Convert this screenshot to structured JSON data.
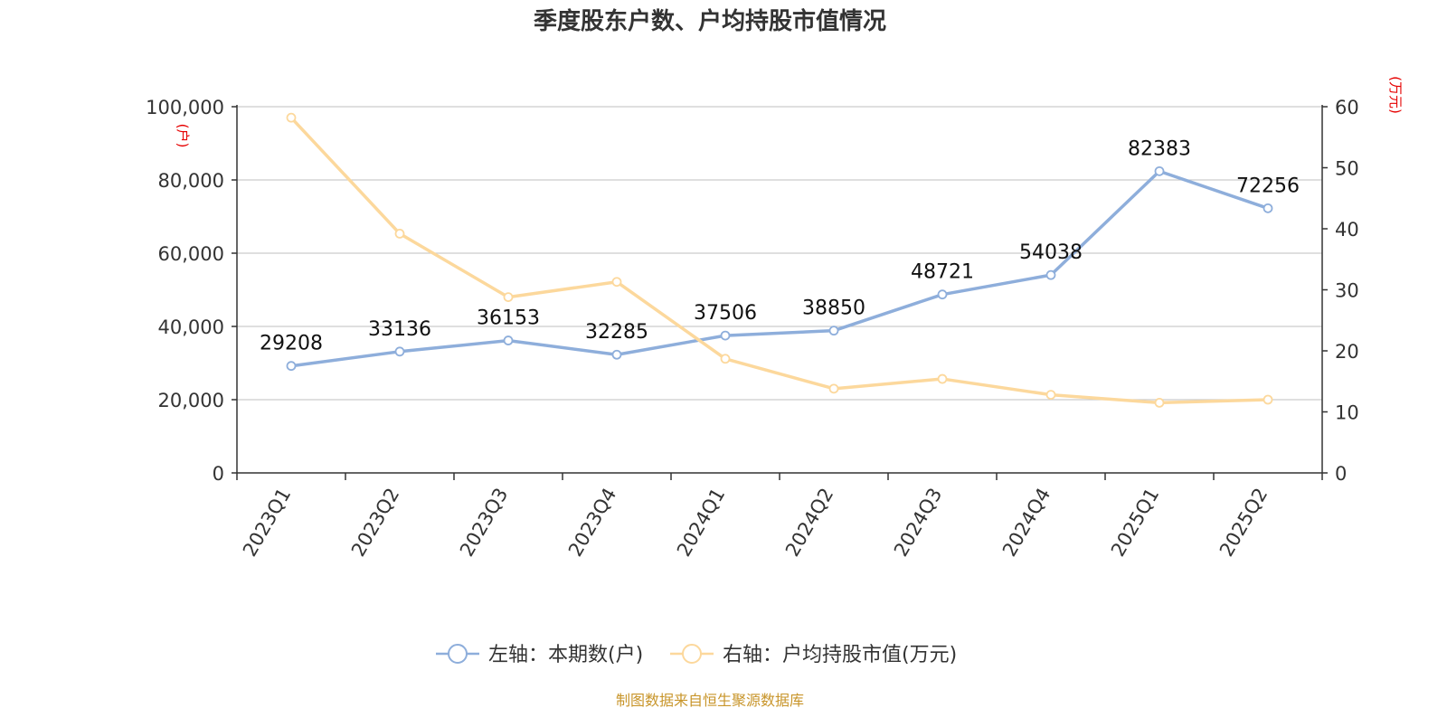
{
  "title": "季度股东户数、户均持股市值情况",
  "source": "制图数据来自恒生聚源数据库",
  "colors": {
    "left_series": "#8eaedb",
    "right_series": "#fcd89c",
    "axis_unit": "#e60000",
    "source": "#c8952a"
  },
  "chart_data": {
    "type": "line",
    "title": "季度股东户数、户均持股市值情况",
    "categories": [
      "2023Q1",
      "2023Q2",
      "2023Q3",
      "2023Q4",
      "2024Q1",
      "2024Q2",
      "2024Q3",
      "2024Q4",
      "2025Q1",
      "2025Q2"
    ],
    "left_axis": {
      "unit_label": "(户)",
      "ylim": [
        0,
        100000
      ],
      "ticks": [
        "0",
        "20,000",
        "40,000",
        "60,000",
        "80,000",
        "100,000"
      ]
    },
    "right_axis": {
      "unit_label": "(万元)",
      "ylim": [
        0,
        60
      ],
      "ticks": [
        "0",
        "10",
        "20",
        "30",
        "40",
        "50",
        "60"
      ]
    },
    "series": [
      {
        "name": "左轴：本期数(户)",
        "axis": "left",
        "values": [
          29208,
          33136,
          36153,
          32285,
          37506,
          38850,
          48721,
          54038,
          82383,
          72256
        ],
        "labels": [
          "29208",
          "33136",
          "36153",
          "32285",
          "37506",
          "38850",
          "48721",
          "54038",
          "82383",
          "72256"
        ]
      },
      {
        "name": "右轴：户均持股市值(万元)",
        "axis": "right",
        "values": [
          58.2,
          39.2,
          28.8,
          31.3,
          18.7,
          13.8,
          15.4,
          12.8,
          11.5,
          12.0
        ]
      }
    ],
    "grid": true,
    "legend": "bottom-center"
  }
}
